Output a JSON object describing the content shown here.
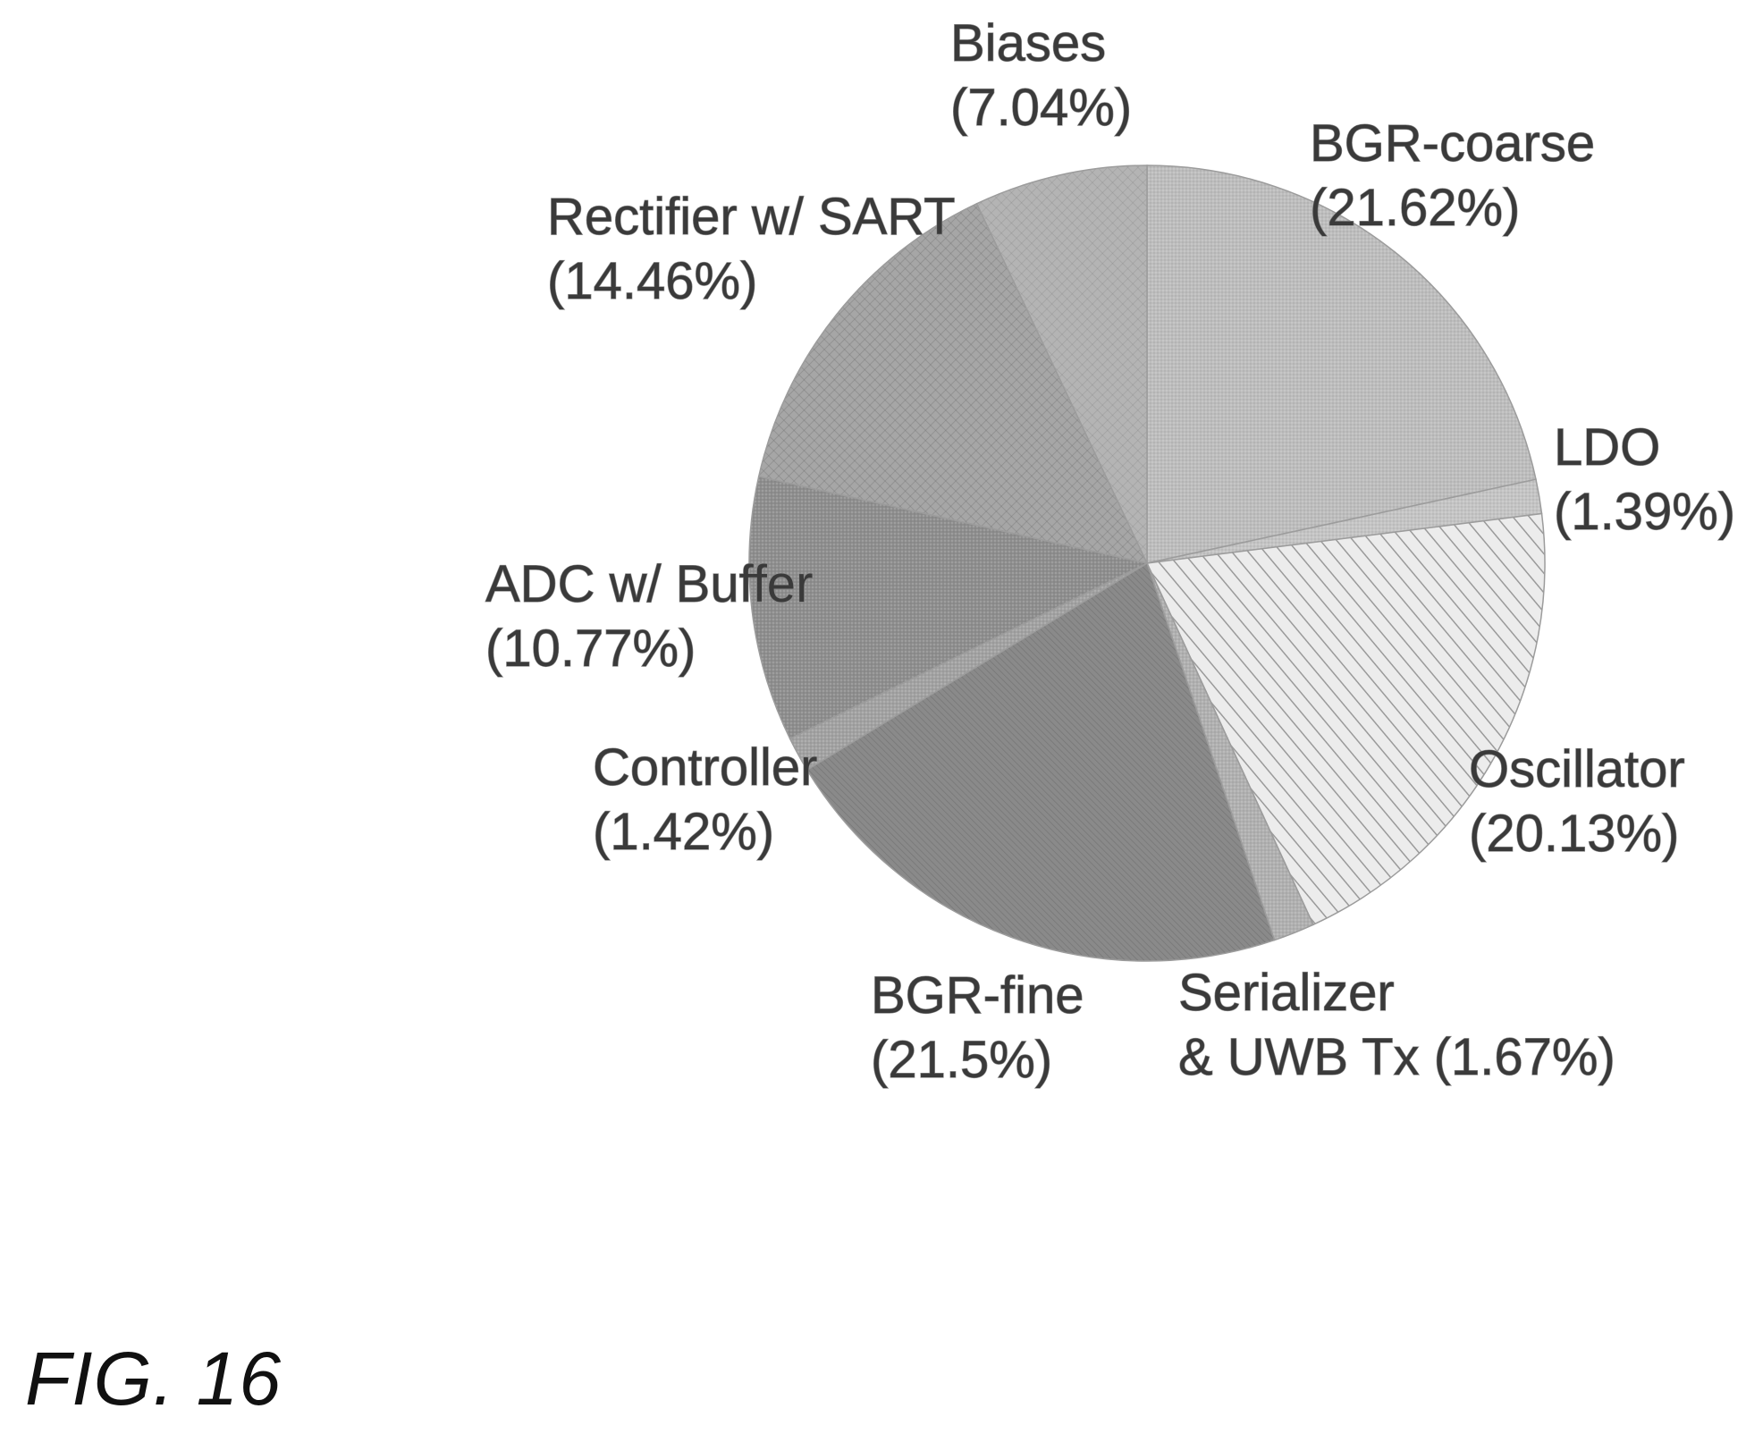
{
  "figure": {
    "caption": "FIG. 16"
  },
  "chart_data": {
    "type": "pie",
    "title": "",
    "start_angle_deg": 0,
    "direction": "clockwise",
    "slices": [
      {
        "name": "BGR-coarse",
        "value": 21.62,
        "label_lines": [
          "BGR-coarse",
          "(21.62%)"
        ],
        "fill": "#bdbdbd",
        "pattern": "fine-dots"
      },
      {
        "name": "LDO",
        "value": 1.39,
        "label_lines": [
          "LDO",
          "(1.39%)"
        ],
        "fill": "#c4c4c4",
        "pattern": "fine-dots"
      },
      {
        "name": "Oscillator",
        "value": 20.13,
        "label_lines": [
          "Oscillator",
          "(20.13%)"
        ],
        "fill": "#ececec",
        "pattern": "diagonal-lines"
      },
      {
        "name": "Serializer & UWB Tx",
        "value": 1.67,
        "label_lines": [
          "Serializer",
          "& UWB Tx (1.67%)"
        ],
        "fill": "#b0b0b0",
        "pattern": "fine-dots"
      },
      {
        "name": "BGR-fine",
        "value": 21.5,
        "label_lines": [
          "BGR-fine",
          "(21.5%)"
        ],
        "fill": "#8a8a8a",
        "pattern": "dense-diagonal"
      },
      {
        "name": "Controller",
        "value": 1.42,
        "label_lines": [
          "Controller",
          "(1.42%)"
        ],
        "fill": "#a2a2a2",
        "pattern": "fine-dots"
      },
      {
        "name": "ADC w/ Buffer",
        "value": 10.77,
        "label_lines": [
          "ADC w/ Buffer",
          "(10.77%)"
        ],
        "fill": "#8e8e8e",
        "pattern": "fine-dots"
      },
      {
        "name": "Rectifier w/ SART",
        "value": 14.46,
        "label_lines": [
          "Rectifier w/ SART",
          "(14.46%)"
        ],
        "fill": "#a6a6a6",
        "pattern": "crosshatch"
      },
      {
        "name": "Biases",
        "value": 7.04,
        "label_lines": [
          "Biases",
          "(7.04%)"
        ],
        "fill": "#b4b4b4",
        "pattern": "crosshatch-light"
      }
    ]
  }
}
